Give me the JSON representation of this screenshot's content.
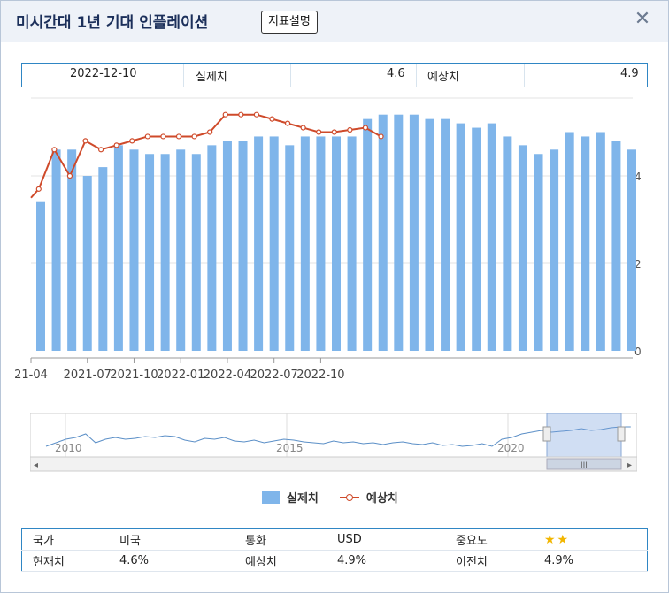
{
  "window": {
    "title": "미시간대 1년 기대 인플레이션",
    "explain_button": "지표설명",
    "close_icon": "close-icon"
  },
  "latest": {
    "date": "2022-12-10",
    "actual_label": "실제치",
    "actual": "4.6",
    "forecast_label": "예상치",
    "forecast": "4.9"
  },
  "legend": {
    "actual": "실제치",
    "forecast": "예상치"
  },
  "navigator": {
    "years": [
      "2010",
      "2015",
      "2020"
    ],
    "scroll_left_icon": "chevron-left-icon",
    "scroll_right_icon": "chevron-right-icon",
    "grip_icon": "grip-icon"
  },
  "details": {
    "country_label": "국가",
    "country": "미국",
    "currency_label": "통화",
    "currency": "USD",
    "importance_label": "중요도",
    "importance_stars": 2,
    "current_label": "현재치",
    "current": "4.6%",
    "forecast_label": "예상치",
    "forecast": "4.9%",
    "previous_label": "이전치",
    "previous": "4.9%"
  },
  "colors": {
    "bar": "#7fb5ea",
    "line": "#cf4a2a",
    "accent": "#2f86c4"
  },
  "chart_data": {
    "type": "bar",
    "x_tick_labels": [
      "21-04",
      "2021-07",
      "2021-10",
      "2022-01",
      "2022-04",
      "2022-07",
      "2022-10"
    ],
    "y_ticks": [
      0,
      2,
      4
    ],
    "ylim": [
      0,
      6
    ],
    "grid": true,
    "series": [
      {
        "name": "실제치",
        "type": "bar",
        "values": [
          3.4,
          4.6,
          4.6,
          4.0,
          4.2,
          4.7,
          4.6,
          4.5,
          4.5,
          4.6,
          4.5,
          4.7,
          4.8,
          4.8,
          4.9,
          4.9,
          4.7,
          4.9,
          4.9,
          4.9,
          4.9,
          5.3,
          5.4,
          5.4,
          5.4,
          5.3,
          5.3,
          5.2,
          5.1,
          5.2,
          4.9,
          4.7,
          4.5,
          4.6,
          5.0,
          4.9,
          5.0,
          4.8,
          4.6
        ]
      },
      {
        "name": "예상치",
        "type": "line",
        "points": [
          [
            0,
            3.5
          ],
          [
            1,
            3.7
          ],
          [
            3,
            4.6
          ],
          [
            5,
            4.0
          ],
          [
            7,
            4.8
          ],
          [
            9,
            4.6
          ],
          [
            11,
            4.7
          ],
          [
            13,
            4.8
          ],
          [
            15,
            4.9
          ],
          [
            17,
            4.9
          ],
          [
            19,
            4.9
          ],
          [
            21,
            4.9
          ],
          [
            23,
            5.0
          ],
          [
            25,
            5.4
          ],
          [
            27,
            5.4
          ],
          [
            29,
            5.4
          ],
          [
            31,
            5.3
          ],
          [
            33,
            5.2
          ],
          [
            35,
            5.1
          ],
          [
            37,
            5.0
          ],
          [
            39,
            5.0
          ],
          [
            41,
            5.05
          ],
          [
            43,
            5.1
          ],
          [
            45,
            4.9
          ]
        ]
      }
    ]
  }
}
